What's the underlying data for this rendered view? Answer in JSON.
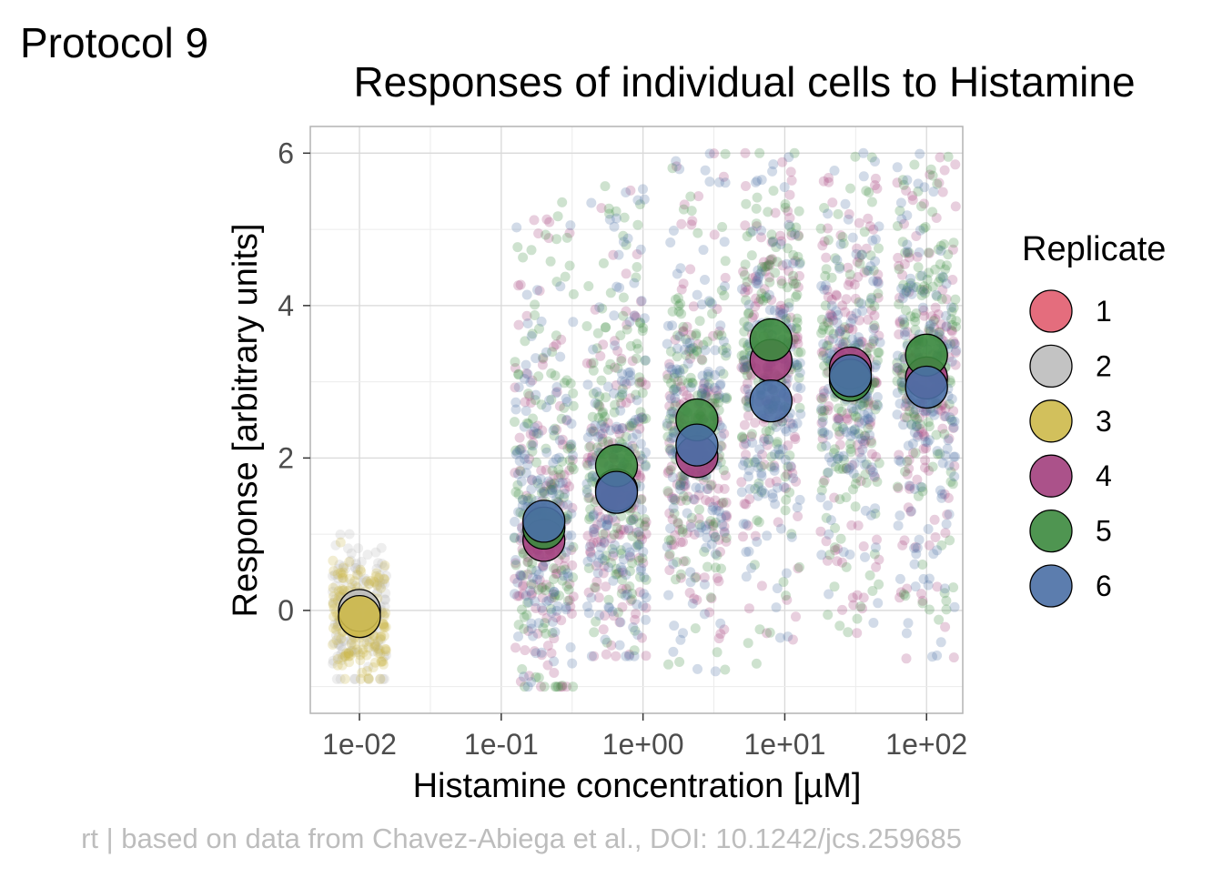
{
  "tag": "Protocol 9",
  "chart_data": {
    "type": "scatter",
    "title": "Responses of individual cells to Histamine",
    "xlabel": "Histamine concentration [µM]",
    "ylabel": "Response [arbitrary units]",
    "x_scale": "log10",
    "x_tick_values": [
      0.01,
      0.1,
      1,
      10,
      100
    ],
    "x_tick_labels": [
      "1e-02",
      "1e-01",
      "1e+00",
      "1e+01",
      "1e+02"
    ],
    "y_ticks": [
      0,
      2,
      4,
      6
    ],
    "xlim": [
      0.0045,
      180
    ],
    "ylim": [
      -1.35,
      6.35
    ],
    "grid": true,
    "legend": {
      "title": "Replicate",
      "position": "right",
      "entries": [
        {
          "label": "1",
          "color": "#E15D6F"
        },
        {
          "label": "2",
          "color": "#BDBDBD"
        },
        {
          "label": "3",
          "color": "#CDB94A"
        },
        {
          "label": "4",
          "color": "#A23F7D"
        },
        {
          "label": "5",
          "color": "#3C8A3E"
        },
        {
          "label": "6",
          "color": "#4A6FA5"
        }
      ]
    },
    "cell_clouds": [
      {
        "x": 0.01,
        "y_range": [
          -0.9,
          1.8
        ],
        "spread": 0.38,
        "replicates": [
          "2",
          "3"
        ]
      },
      {
        "x": 0.2,
        "y_range": [
          -1.0,
          5.4
        ],
        "spread": 0.42,
        "replicates": [
          "4",
          "5",
          "6"
        ]
      },
      {
        "x": 0.65,
        "y_range": [
          -0.6,
          5.6
        ],
        "spread": 0.42,
        "replicates": [
          "4",
          "5",
          "6"
        ]
      },
      {
        "x": 2.4,
        "y_range": [
          -0.8,
          6.0
        ],
        "spread": 0.42,
        "replicates": [
          "4",
          "5",
          "6"
        ]
      },
      {
        "x": 8.0,
        "y_range": [
          -0.7,
          6.0
        ],
        "spread": 0.42,
        "replicates": [
          "4",
          "5",
          "6"
        ]
      },
      {
        "x": 29.0,
        "y_range": [
          -0.3,
          6.0
        ],
        "spread": 0.42,
        "replicates": [
          "4",
          "5",
          "6"
        ]
      },
      {
        "x": 100.0,
        "y_range": [
          -0.65,
          6.0
        ],
        "spread": 0.42,
        "replicates": [
          "4",
          "5",
          "6"
        ]
      }
    ],
    "series": [
      {
        "name": "2",
        "x": [
          0.01
        ],
        "y": [
          0.0
        ]
      },
      {
        "name": "3",
        "x": [
          0.01
        ],
        "y": [
          -0.08
        ]
      },
      {
        "name": "4",
        "x": [
          0.2,
          0.65,
          2.4,
          8.0,
          29.0,
          100.0
        ],
        "y": [
          0.92,
          1.58,
          2.02,
          3.28,
          3.18,
          3.05
        ]
      },
      {
        "name": "5",
        "x": [
          0.2,
          0.65,
          2.4,
          8.0,
          29.0,
          100.0
        ],
        "y": [
          1.08,
          1.9,
          2.5,
          3.55,
          3.02,
          3.35
        ]
      },
      {
        "name": "6",
        "x": [
          0.2,
          0.65,
          2.4,
          8.0,
          29.0,
          100.0
        ],
        "y": [
          1.17,
          1.55,
          2.17,
          2.75,
          3.08,
          2.93
        ]
      }
    ]
  },
  "caption": "rt | based on data from Chavez-Abiega et al., DOI: 10.1242/jcs.259685"
}
